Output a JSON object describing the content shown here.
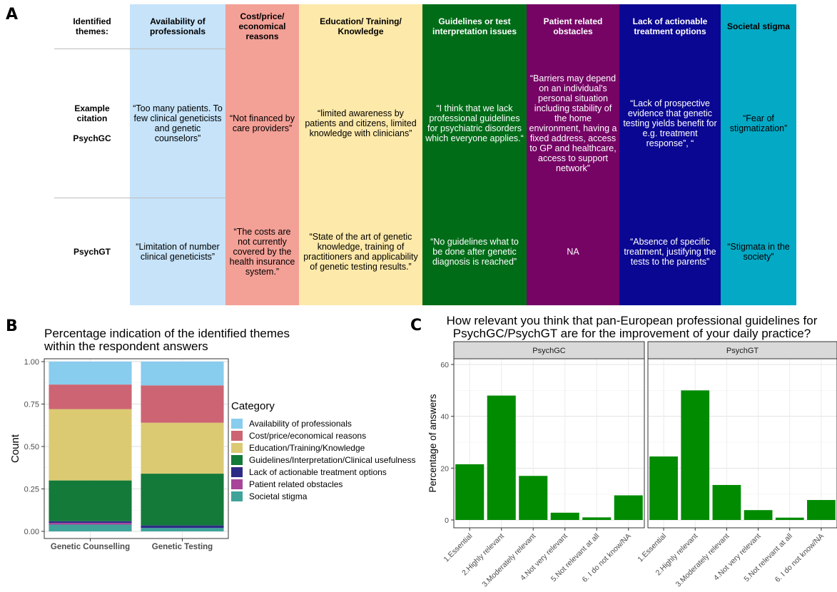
{
  "panels": {
    "a": "A",
    "b": "B",
    "c": "C"
  },
  "themes_table": {
    "header_label": "Identified themes:",
    "columns": [
      {
        "label": "Availability of professionals",
        "color": "#c6e3f9",
        "text_color": "#000000"
      },
      {
        "label": "Cost/price/ economical reasons",
        "color": "#f3a097",
        "text_color": "#000000"
      },
      {
        "label": "Education/ Training/ Knowledge",
        "color": "#fde9a9",
        "text_color": "#000000"
      },
      {
        "label": "Guidelines or test interpretation issues",
        "color": "#006c18",
        "text_color": "#ffffff"
      },
      {
        "label": "Patient related obstacles",
        "color": "#760465",
        "text_color": "#ffffff"
      },
      {
        "label": "Lack of actionable treatment options",
        "color": "#0a0793",
        "text_color": "#ffffff"
      },
      {
        "label": "Societal stigma",
        "color": "#04a9c5",
        "text_color": "#000000"
      }
    ],
    "rows": [
      {
        "label_lines": [
          "Example",
          "citation",
          "",
          "PsychGC"
        ],
        "cells": [
          "“Too many patients. To few clinical geneticists and genetic counselors”",
          "“Not financed by care providers”",
          "“limited awareness by patients and citizens, limited knowledge with clinicians”",
          "“I think that we lack professional guidelines for psychiatric disorders which everyone applies.“",
          "“Barriers may depend on an individual's personal situation including stability of the home environment, having a fixed address, access to GP and healthcare, access to support network”",
          "“Lack of prospective evidence that genetic testing yields benefit for e.g. treatment response”, “",
          "“Fear of stigmatization”"
        ]
      },
      {
        "label_lines": [
          "PsychGT"
        ],
        "cells": [
          "“Limitation of number clinical geneticists”",
          "“The costs are not currently covered by the health insurance system.”",
          "“State of the art of genetic knowledge, training of practitioners and applicability of genetic testing results.”",
          "“No guidelines what to be done after genetic diagnosis is reached”",
          "NA",
          "“Absence of specific treatment, justifying the tests to the parents”",
          "“Stigmata in the society”"
        ]
      }
    ]
  },
  "chart_data": [
    {
      "type": "bar",
      "stacked": true,
      "title": "Percentage indication of the identified themes within the respondent answers",
      "title_lines": [
        "Percentage indication of the identified themes",
        "within the respondent answers"
      ],
      "xlabel": "",
      "ylabel": "Count",
      "ylim": [
        0,
        1
      ],
      "yticks": [
        "0.00",
        "0.25",
        "0.50",
        "0.75",
        "1.00"
      ],
      "categories": [
        "Genetic Counselling",
        "Genetic Testing"
      ],
      "legend_title": "Category",
      "legend_position": "right",
      "series": [
        {
          "name": "Societal stigma",
          "color": "#3fa39a",
          "values": [
            0.04,
            0.02
          ]
        },
        {
          "name": "Patient related obstacles",
          "color": "#a8449a",
          "values": [
            0.01,
            0.0
          ]
        },
        {
          "name": "Lack of actionable treatment options",
          "color": "#2d2a86",
          "values": [
            0.01,
            0.015
          ]
        },
        {
          "name": "Guidelines/Interpretation/Clinical usefulness",
          "color": "#137a39",
          "values": [
            0.24,
            0.305
          ]
        },
        {
          "name": "Education/Training/Knowledge",
          "color": "#dcca73",
          "values": [
            0.42,
            0.3
          ]
        },
        {
          "name": "Cost/price/economical reasons",
          "color": "#cc6473",
          "values": [
            0.145,
            0.22
          ]
        },
        {
          "name": "Availability of professionals",
          "color": "#88ccee",
          "values": [
            0.135,
            0.14
          ]
        }
      ],
      "legend_order": [
        "Availability of professionals",
        "Cost/price/economical reasons",
        "Education/Training/Knowledge",
        "Guidelines/Interpretation/Clinical usefulness",
        "Lack of actionable treatment options",
        "Patient related obstacles",
        "Societal stigma"
      ]
    },
    {
      "type": "bar",
      "title": "How relevant you think that pan-European professional guidelines for PsychGC/PsychGT are for the improvement of your daily practice?",
      "title_lines": [
        "How relevant you think that pan-European professional guidelines for",
        "PsychGC/PsychGT are for the improvement of your daily practice?"
      ],
      "xlabel": "",
      "ylabel": "Percentage of answers",
      "ylim": [
        0,
        60
      ],
      "yticks": [
        0,
        20,
        40,
        60
      ],
      "bar_color": "#008b00",
      "categories": [
        "1.Essential",
        "2.Highly relevant",
        "3.Moderately relevant",
        "4.Not very relevant",
        "5.Not relevant at all",
        "6. I do not know/NA"
      ],
      "facets": [
        {
          "name": "PsychGC",
          "values": [
            21.5,
            48,
            17,
            2.8,
            1,
            9.5
          ]
        },
        {
          "name": "PsychGT",
          "values": [
            24.5,
            50,
            13.5,
            3.8,
            0.9,
            7.7
          ]
        }
      ]
    }
  ]
}
